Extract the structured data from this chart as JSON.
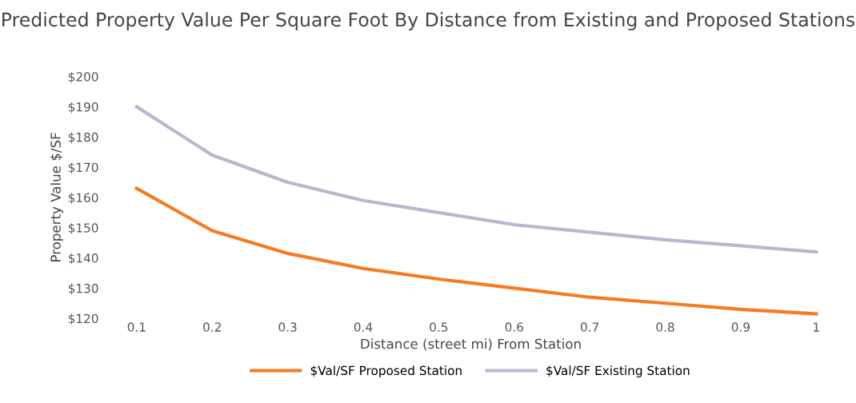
{
  "chart_data": {
    "type": "line",
    "title": "Predicted Property Value Per Square Foot By Distance from Existing and Proposed Stations",
    "xlabel": "Distance (street mi) From Station",
    "ylabel": "Property Value $/SF",
    "categories": [
      "0.1",
      "0.2",
      "0.3",
      "0.4",
      "0.5",
      "0.6",
      "0.7",
      "0.8",
      "0.9",
      "1"
    ],
    "series": [
      {
        "name": "$Val/SF Proposed Station",
        "color": "#f77b22",
        "values": [
          163,
          149,
          141.5,
          136.5,
          133,
          130,
          127,
          125,
          123,
          121.5
        ]
      },
      {
        "name": "$Val/SF Existing Station",
        "color": "#b8b8cc",
        "values": [
          190,
          174,
          165,
          159,
          155,
          151,
          148.5,
          146,
          144,
          142
        ]
      }
    ],
    "ylim": [
      120,
      200
    ],
    "yticks": [
      {
        "value": 120,
        "label": "$120"
      },
      {
        "value": 130,
        "label": "$130"
      },
      {
        "value": 140,
        "label": "$140"
      },
      {
        "value": 150,
        "label": "$150"
      },
      {
        "value": 160,
        "label": "$160"
      },
      {
        "value": 170,
        "label": "$170"
      },
      {
        "value": 180,
        "label": "$180"
      },
      {
        "value": 190,
        "label": "$190"
      },
      {
        "value": 200,
        "label": "$200"
      }
    ],
    "grid": false,
    "legend": "bottom",
    "marker": "none",
    "line_style": "solid"
  }
}
